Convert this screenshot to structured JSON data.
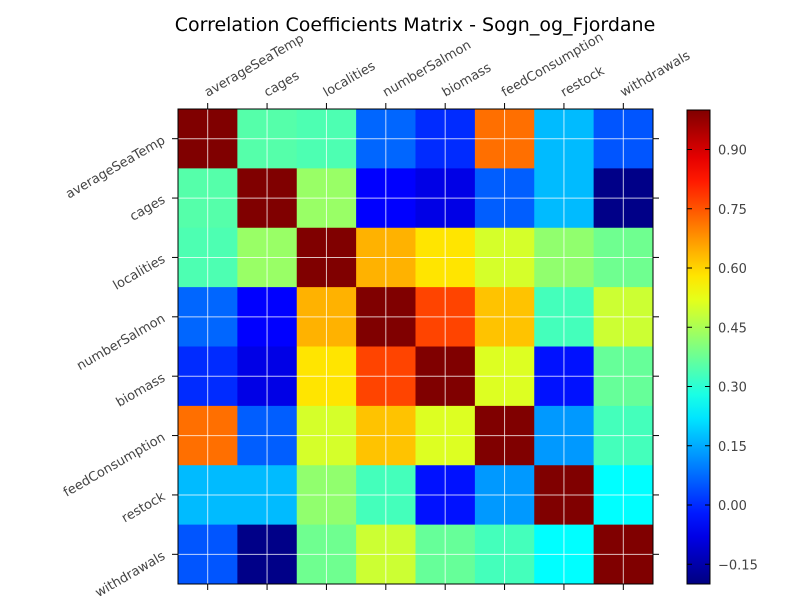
{
  "chart_data": {
    "type": "heatmap",
    "title": "Correlation Coefficients Matrix - Sogn_og_Fjordane",
    "labels": [
      "averageSeaTemp",
      "cages",
      "localities",
      "numberSalmon",
      "biomass",
      "feedConsumption",
      "restock",
      "withdrawals"
    ],
    "values": [
      [
        1.0,
        0.35,
        0.34,
        0.07,
        0.0,
        0.72,
        0.17,
        0.05
      ],
      [
        0.35,
        1.0,
        0.43,
        -0.05,
        -0.08,
        0.06,
        0.17,
        -0.19
      ],
      [
        0.34,
        0.43,
        1.0,
        0.64,
        0.58,
        0.5,
        0.42,
        0.38
      ],
      [
        0.07,
        -0.05,
        0.64,
        1.0,
        0.77,
        0.62,
        0.33,
        0.49
      ],
      [
        0.0,
        -0.08,
        0.58,
        0.77,
        1.0,
        0.51,
        -0.03,
        0.37
      ],
      [
        0.72,
        0.06,
        0.5,
        0.62,
        0.51,
        1.0,
        0.13,
        0.33
      ],
      [
        0.17,
        0.17,
        0.42,
        0.33,
        -0.03,
        0.13,
        1.0,
        0.25
      ],
      [
        0.05,
        -0.19,
        0.38,
        0.49,
        0.37,
        0.33,
        0.25,
        1.0
      ]
    ],
    "colorbar": {
      "min": -0.2,
      "max": 1.0,
      "ticks": [
        -0.15,
        0.0,
        0.15,
        0.3,
        0.45,
        0.6,
        0.75,
        0.9
      ],
      "tick_labels": [
        "−0.15",
        "0.00",
        "0.15",
        "0.30",
        "0.45",
        "0.60",
        "0.75",
        "0.90"
      ],
      "colormap": "jet"
    },
    "grid": true
  }
}
